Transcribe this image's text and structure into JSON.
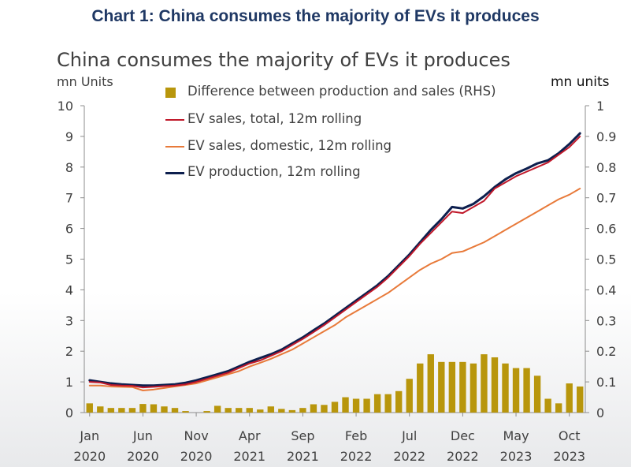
{
  "page_title": "Chart 1: China consumes the majority of EVs it produces",
  "chart_data": {
    "type": "line",
    "title": "China consumes the majority of EVs it produces",
    "ylabel": "mn Units",
    "ylabel_right": "mn units",
    "ylim": [
      0,
      10
    ],
    "ylim_right": [
      0,
      1
    ],
    "yticks": [
      "0",
      "1",
      "2",
      "3",
      "4",
      "5",
      "6",
      "7",
      "8",
      "9",
      "10"
    ],
    "yticks_right": [
      "0",
      "0.1",
      "0.2",
      "0.3",
      "0.4",
      "0.5",
      "0.6",
      "0.7",
      "0.8",
      "0.9",
      "1"
    ],
    "x_tick_labels": [
      {
        "month": "Jan",
        "year": "2020",
        "index": 0
      },
      {
        "month": "Jun",
        "year": "2020",
        "index": 5
      },
      {
        "month": "Nov",
        "year": "2020",
        "index": 10
      },
      {
        "month": "Apr",
        "year": "2021",
        "index": 15
      },
      {
        "month": "Sep",
        "year": "2021",
        "index": 20
      },
      {
        "month": "Feb",
        "year": "2022",
        "index": 25
      },
      {
        "month": "Jul",
        "year": "2022",
        "index": 30
      },
      {
        "month": "Dec",
        "year": "2022",
        "index": 35
      },
      {
        "month": "May",
        "year": "2023",
        "index": 40
      },
      {
        "month": "Oct",
        "year": "2023",
        "index": 45
      }
    ],
    "legend_position": "top-center",
    "series": [
      {
        "name": "Difference between production and sales (RHS)",
        "kind": "bar",
        "axis": "right",
        "color": "#b8960c",
        "values": [
          0.03,
          0.02,
          0.015,
          0.015,
          0.015,
          0.028,
          0.027,
          0.02,
          0.015,
          0.005,
          0.0,
          0.005,
          0.022,
          0.015,
          0.015,
          0.015,
          0.01,
          0.02,
          0.012,
          0.008,
          0.015,
          0.027,
          0.025,
          0.035,
          0.05,
          0.045,
          0.045,
          0.06,
          0.06,
          0.07,
          0.11,
          0.16,
          0.19,
          0.165,
          0.165,
          0.165,
          0.16,
          0.19,
          0.18,
          0.16,
          0.145,
          0.145,
          0.12,
          0.045,
          0.03,
          0.095,
          0.085
        ]
      },
      {
        "name": "EV sales, total, 12m rolling",
        "kind": "line",
        "axis": "left",
        "color": "#c0182a",
        "values": [
          1.0,
          0.98,
          0.9,
          0.88,
          0.87,
          0.82,
          0.84,
          0.86,
          0.88,
          0.92,
          1.0,
          1.1,
          1.2,
          1.3,
          1.45,
          1.6,
          1.7,
          1.85,
          2.0,
          2.2,
          2.4,
          2.62,
          2.85,
          3.1,
          3.35,
          3.6,
          3.85,
          4.1,
          4.4,
          4.75,
          5.1,
          5.5,
          5.85,
          6.2,
          6.55,
          6.5,
          6.7,
          6.9,
          7.3,
          7.5,
          7.7,
          7.85,
          8.0,
          8.15,
          8.4,
          8.65,
          9.0
        ]
      },
      {
        "name": "EV sales, domestic, 12m rolling",
        "kind": "line",
        "axis": "left",
        "color": "#e87a3a",
        "values": [
          0.88,
          0.88,
          0.85,
          0.84,
          0.83,
          0.72,
          0.75,
          0.8,
          0.85,
          0.9,
          0.95,
          1.05,
          1.15,
          1.25,
          1.35,
          1.5,
          1.62,
          1.75,
          1.9,
          2.05,
          2.25,
          2.45,
          2.65,
          2.85,
          3.1,
          3.3,
          3.5,
          3.7,
          3.9,
          4.15,
          4.4,
          4.65,
          4.85,
          5.0,
          5.2,
          5.25,
          5.4,
          5.55,
          5.75,
          5.95,
          6.15,
          6.35,
          6.55,
          6.75,
          6.95,
          7.1,
          7.3
        ]
      },
      {
        "name": "EV production, 12m rolling",
        "kind": "line",
        "axis": "left",
        "color": "#0d1f4e",
        "values": [
          1.05,
          1.0,
          0.95,
          0.92,
          0.9,
          0.88,
          0.88,
          0.9,
          0.92,
          0.97,
          1.05,
          1.15,
          1.25,
          1.35,
          1.5,
          1.65,
          1.78,
          1.9,
          2.05,
          2.25,
          2.45,
          2.68,
          2.9,
          3.15,
          3.4,
          3.65,
          3.9,
          4.15,
          4.45,
          4.8,
          5.15,
          5.55,
          5.95,
          6.3,
          6.7,
          6.65,
          6.8,
          7.05,
          7.35,
          7.6,
          7.8,
          7.95,
          8.12,
          8.22,
          8.45,
          8.75,
          9.1
        ]
      }
    ]
  }
}
